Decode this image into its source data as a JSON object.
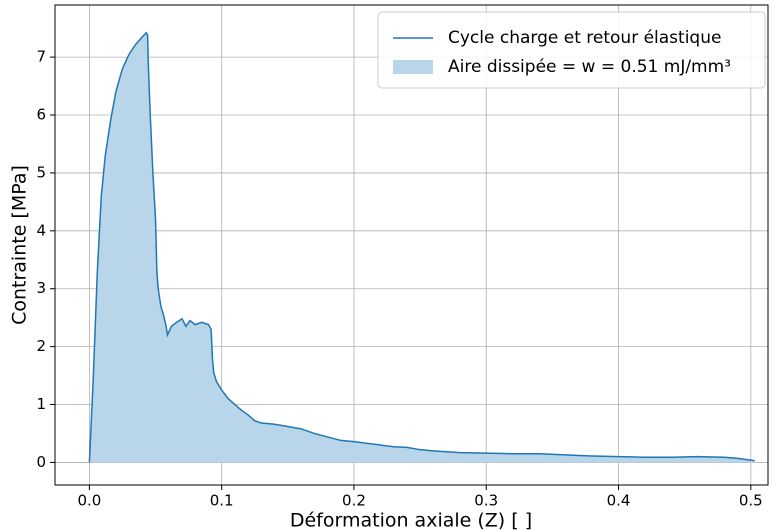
{
  "chart_data": {
    "type": "line",
    "xlabel": "Déformation axiale (Z) [ ]",
    "ylabel": "Contrainte [MPa]",
    "grid": true,
    "legend": "upper right",
    "xlim": [
      -0.026,
      0.513
    ],
    "ylim": [
      -0.39,
      7.9
    ],
    "xticks": [
      {
        "value": 0,
        "label": "0.0"
      },
      0.1,
      0.2,
      0.3,
      0.4,
      0.5
    ],
    "yticks": [
      0,
      1,
      2,
      3,
      4,
      5,
      6,
      7
    ],
    "x": [
      0,
      0.003,
      0.006,
      0.009,
      0.012,
      0.016,
      0.02,
      0.025,
      0.03,
      0.035,
      0.04,
      0.043,
      0.044,
      0.0445,
      0.046,
      0.048,
      0.05,
      0.051,
      0.052,
      0.054,
      0.056,
      0.058,
      0.059,
      0.062,
      0.066,
      0.07,
      0.073,
      0.076,
      0.08,
      0.085,
      0.09,
      0.092,
      0.093,
      0.094,
      0.096,
      0.1,
      0.105,
      0.11,
      0.115,
      0.12,
      0.125,
      0.13,
      0.14,
      0.15,
      0.16,
      0.17,
      0.18,
      0.19,
      0.2,
      0.21,
      0.22,
      0.23,
      0.24,
      0.25,
      0.26,
      0.28,
      0.3,
      0.32,
      0.34,
      0.36,
      0.37,
      0.38,
      0.4,
      0.42,
      0.44,
      0.46,
      0.48,
      0.49,
      0.5,
      0.503
    ],
    "series": [
      {
        "name": "Cycle charge et retour élastique",
        "color": "#1f77b4",
        "values": [
          0,
          1.5,
          3.3,
          4.6,
          5.3,
          5.9,
          6.4,
          6.8,
          7.05,
          7.22,
          7.35,
          7.42,
          7.38,
          6.9,
          6.0,
          5.0,
          4.2,
          3.3,
          3.0,
          2.7,
          2.55,
          2.35,
          2.2,
          2.35,
          2.42,
          2.48,
          2.35,
          2.45,
          2.38,
          2.42,
          2.38,
          2.3,
          1.8,
          1.55,
          1.4,
          1.25,
          1.1,
          1.0,
          0.9,
          0.82,
          0.72,
          0.68,
          0.66,
          0.62,
          0.58,
          0.5,
          0.44,
          0.38,
          0.36,
          0.33,
          0.3,
          0.27,
          0.26,
          0.22,
          0.2,
          0.17,
          0.16,
          0.15,
          0.15,
          0.13,
          0.12,
          0.11,
          0.1,
          0.09,
          0.09,
          0.1,
          0.09,
          0.07,
          0.04,
          0.03
        ]
      }
    ],
    "fill": {
      "name": "Aire dissipée = w = 0.51 mJ/mm³",
      "color": "#b9d5ea"
    }
  }
}
